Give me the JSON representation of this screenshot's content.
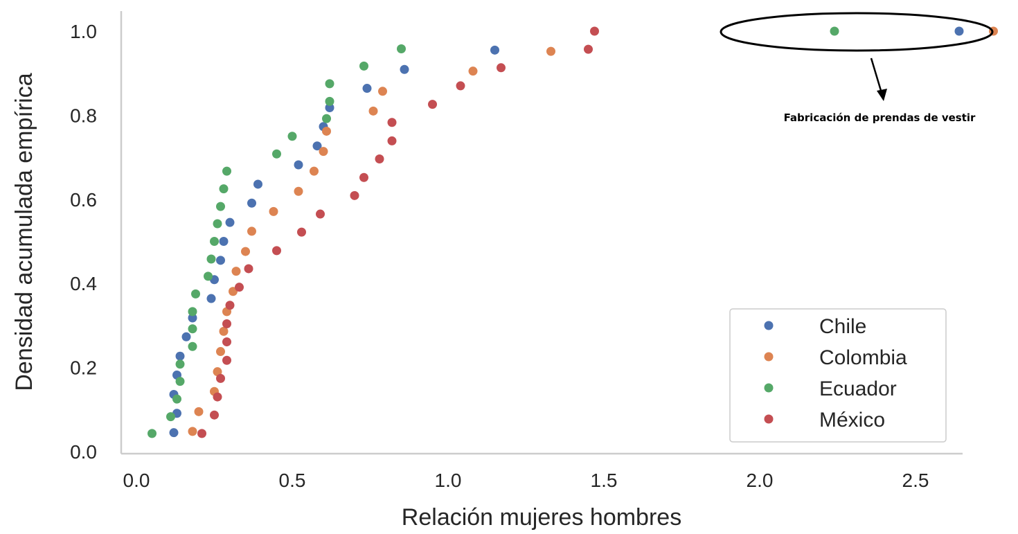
{
  "colors": {
    "Chile": "#4c72b0",
    "Colombia": "#dd8452",
    "Ecuador": "#55a868",
    "México": "#c44e52",
    "axis": "#cccccc"
  },
  "chart_data": {
    "type": "scatter",
    "xlabel": "Relación mujeres hombres",
    "ylabel": "Densidad acumulada empírica",
    "xlim": [
      -0.05,
      2.62
    ],
    "ylim": [
      0.0,
      1.03
    ],
    "xticks": [
      "0.0",
      "0.5",
      "1.0",
      "1.5",
      "2.0",
      "2.5"
    ],
    "yticks": [
      "0.0",
      "0.2",
      "0.4",
      "0.6",
      "0.8",
      "1.0"
    ],
    "grid": false,
    "legend_position": "bottom-right",
    "series": [
      {
        "name": "Chile",
        "points": [
          [
            0.12,
            0.045
          ],
          [
            0.13,
            0.091
          ],
          [
            0.12,
            0.136
          ],
          [
            0.13,
            0.182
          ],
          [
            0.14,
            0.227
          ],
          [
            0.16,
            0.273
          ],
          [
            0.18,
            0.318
          ],
          [
            0.24,
            0.364
          ],
          [
            0.25,
            0.409
          ],
          [
            0.27,
            0.455
          ],
          [
            0.28,
            0.5
          ],
          [
            0.3,
            0.545
          ],
          [
            0.37,
            0.591
          ],
          [
            0.39,
            0.636
          ],
          [
            0.52,
            0.682
          ],
          [
            0.58,
            0.727
          ],
          [
            0.6,
            0.773
          ],
          [
            0.62,
            0.818
          ],
          [
            0.74,
            0.864
          ],
          [
            0.86,
            0.909
          ],
          [
            1.15,
            0.955
          ],
          [
            2.64,
            1.0
          ]
        ]
      },
      {
        "name": "Colombia",
        "points": [
          [
            0.18,
            0.048
          ],
          [
            0.2,
            0.095
          ],
          [
            0.25,
            0.143
          ],
          [
            0.26,
            0.19
          ],
          [
            0.27,
            0.238
          ],
          [
            0.28,
            0.286
          ],
          [
            0.29,
            0.333
          ],
          [
            0.31,
            0.381
          ],
          [
            0.32,
            0.429
          ],
          [
            0.35,
            0.476
          ],
          [
            0.37,
            0.524
          ],
          [
            0.44,
            0.571
          ],
          [
            0.52,
            0.619
          ],
          [
            0.57,
            0.667
          ],
          [
            0.6,
            0.714
          ],
          [
            0.61,
            0.762
          ],
          [
            0.76,
            0.81
          ],
          [
            0.79,
            0.857
          ],
          [
            1.08,
            0.905
          ],
          [
            1.33,
            0.952
          ],
          [
            2.75,
            1.0
          ]
        ]
      },
      {
        "name": "Ecuador",
        "points": [
          [
            0.05,
            0.043
          ],
          [
            0.11,
            0.083
          ],
          [
            0.13,
            0.125
          ],
          [
            0.14,
            0.167
          ],
          [
            0.14,
            0.208
          ],
          [
            0.18,
            0.25
          ],
          [
            0.18,
            0.292
          ],
          [
            0.18,
            0.333
          ],
          [
            0.19,
            0.375
          ],
          [
            0.23,
            0.417
          ],
          [
            0.24,
            0.458
          ],
          [
            0.25,
            0.5
          ],
          [
            0.26,
            0.542
          ],
          [
            0.27,
            0.583
          ],
          [
            0.28,
            0.625
          ],
          [
            0.29,
            0.667
          ],
          [
            0.45,
            0.708
          ],
          [
            0.5,
            0.75
          ],
          [
            0.61,
            0.792
          ],
          [
            0.62,
            0.833
          ],
          [
            0.62,
            0.875
          ],
          [
            0.73,
            0.917
          ],
          [
            0.85,
            0.958
          ],
          [
            2.24,
            1.0
          ]
        ]
      },
      {
        "name": "México",
        "points": [
          [
            0.21,
            0.043
          ],
          [
            0.25,
            0.087
          ],
          [
            0.26,
            0.13
          ],
          [
            0.27,
            0.174
          ],
          [
            0.29,
            0.217
          ],
          [
            0.29,
            0.261
          ],
          [
            0.29,
            0.304
          ],
          [
            0.3,
            0.348
          ],
          [
            0.33,
            0.391
          ],
          [
            0.36,
            0.435
          ],
          [
            0.45,
            0.478
          ],
          [
            0.53,
            0.522
          ],
          [
            0.59,
            0.565
          ],
          [
            0.7,
            0.609
          ],
          [
            0.73,
            0.652
          ],
          [
            0.78,
            0.696
          ],
          [
            0.82,
            0.739
          ],
          [
            0.82,
            0.783
          ],
          [
            0.95,
            0.826
          ],
          [
            1.04,
            0.87
          ],
          [
            1.17,
            0.913
          ],
          [
            1.45,
            0.957
          ],
          [
            1.47,
            1.0
          ]
        ]
      }
    ],
    "annotation": {
      "text": "Fabricación de prendas de vestir"
    }
  }
}
